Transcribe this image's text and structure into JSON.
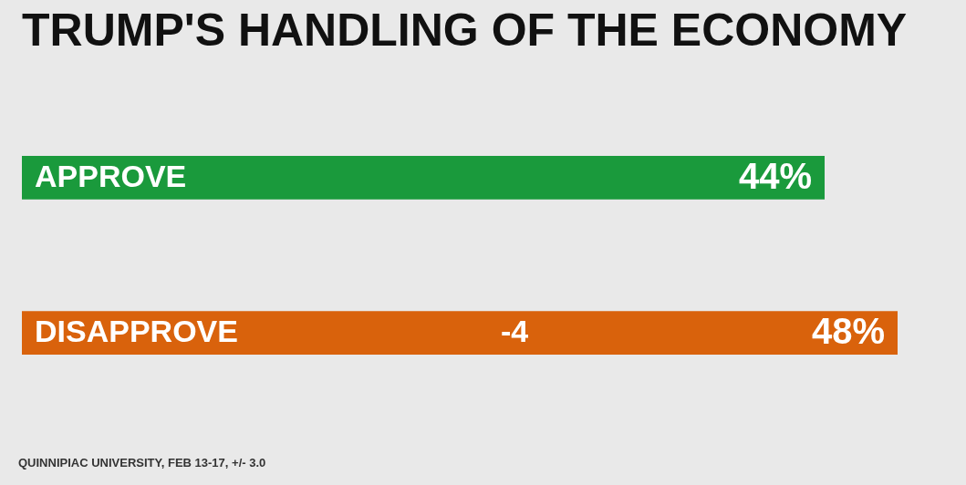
{
  "chart_data": {
    "type": "bar",
    "orientation": "horizontal",
    "title": "TRUMP'S HANDLING OF THE ECONOMY",
    "categories": [
      "APPROVE",
      "DISAPPROVE"
    ],
    "values": [
      44,
      48
    ],
    "colors": [
      "#1a9a3c",
      "#d9620c"
    ],
    "value_labels": [
      "44%",
      "48%"
    ],
    "annotations": [
      "-4",
      "QUINNIPIAC UNIVERSITY, FEB 13-17, +/- 3.0"
    ]
  }
}
